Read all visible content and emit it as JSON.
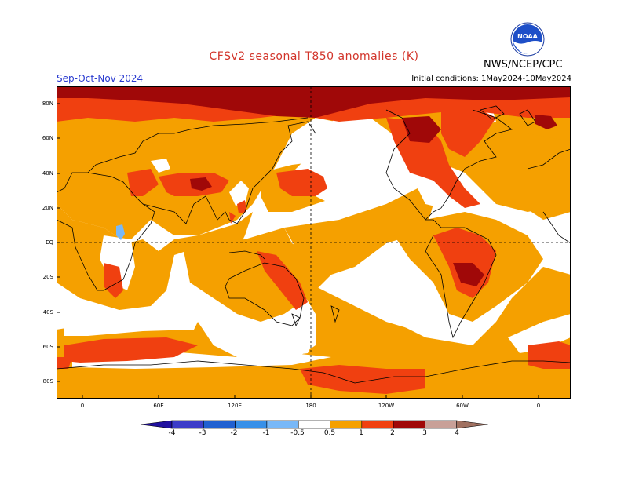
{
  "header": {
    "title": "CFSv2 seasonal T850 anomalies (K)",
    "season": "Sep-Oct-Nov 2024",
    "initial_conditions": "Initial conditions: 1May2024-10May2024",
    "agency": "NWS/NCEP/CPC",
    "logo_text": "NOAA"
  },
  "map": {
    "lat_labels": [
      "80N",
      "60N",
      "40N",
      "20N",
      "EQ",
      "20S",
      "40S",
      "60S",
      "80S"
    ],
    "lon_labels": [
      "0",
      "60E",
      "120E",
      "180",
      "120W",
      "60W",
      "0"
    ]
  },
  "legend": {
    "labels": [
      "-4",
      "-3",
      "-2",
      "-1",
      "-0.5",
      "0.5",
      "1",
      "2",
      "3",
      "4"
    ],
    "colors": [
      "#2010a0",
      "#3c3cc8",
      "#2060d0",
      "#3890e8",
      "#78b8f8",
      "#ffffff",
      "#f5a000",
      "#f04010",
      "#a00808",
      "#c8a098",
      "#a07060"
    ]
  }
}
